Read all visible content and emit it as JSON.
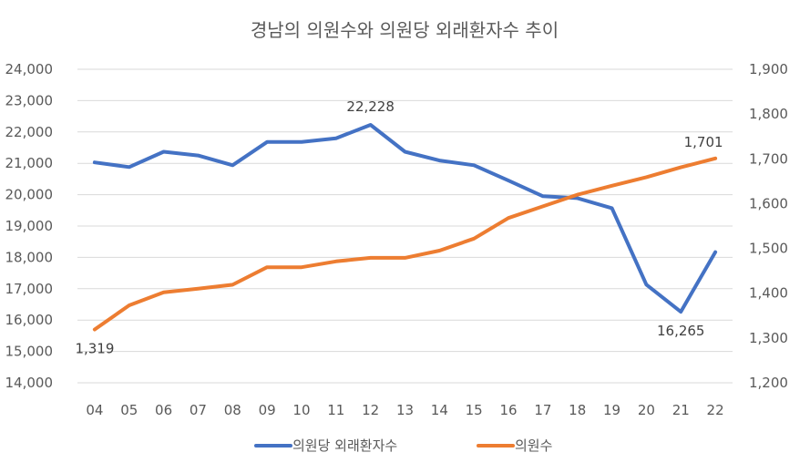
{
  "chart_data": {
    "type": "line",
    "title": "경남의 의원수와 의원당 외래환자수 추이",
    "categories": [
      "04",
      "05",
      "06",
      "07",
      "08",
      "09",
      "10",
      "11",
      "12",
      "13",
      "14",
      "15",
      "16",
      "17",
      "18",
      "19",
      "20",
      "21",
      "22"
    ],
    "series": [
      {
        "name": "의원당 외래환자수",
        "axis": "left",
        "color": "#4472C4",
        "values": [
          21030,
          20880,
          21370,
          21250,
          20940,
          21680,
          21680,
          21800,
          22228,
          21370,
          21090,
          20940,
          20450,
          19950,
          19890,
          19570,
          17130,
          16265,
          18170
        ]
      },
      {
        "name": "의원수",
        "axis": "right",
        "color": "#ED7D31",
        "values": [
          1319,
          1373,
          1402,
          1410,
          1419,
          1458,
          1458,
          1471,
          1479,
          1479,
          1495,
          1522,
          1568,
          1594,
          1620,
          1640,
          1659,
          1681,
          1701
        ]
      }
    ],
    "y_left": {
      "min": 14000,
      "max": 24000,
      "step": 1000,
      "tick_labels": [
        "14,000",
        "15,000",
        "16,000",
        "17,000",
        "18,000",
        "19,000",
        "20,000",
        "21,000",
        "22,000",
        "23,000",
        "24,000"
      ]
    },
    "y_right": {
      "min": 1200,
      "max": 1900,
      "step": 100,
      "tick_labels": [
        "1,200",
        "1,300",
        "1,400",
        "1,500",
        "1,600",
        "1,700",
        "1,800",
        "1,900"
      ]
    },
    "data_labels": [
      {
        "series": 0,
        "index": 8,
        "text": "22,228",
        "position": "above"
      },
      {
        "series": 0,
        "index": 17,
        "text": "16,265",
        "position": "below"
      },
      {
        "series": 1,
        "index": 0,
        "text": "1,319",
        "position": "below"
      },
      {
        "series": 1,
        "index": 18,
        "text": "1,701",
        "position": "above-left"
      }
    ],
    "grid": true,
    "legend_position": "bottom"
  }
}
